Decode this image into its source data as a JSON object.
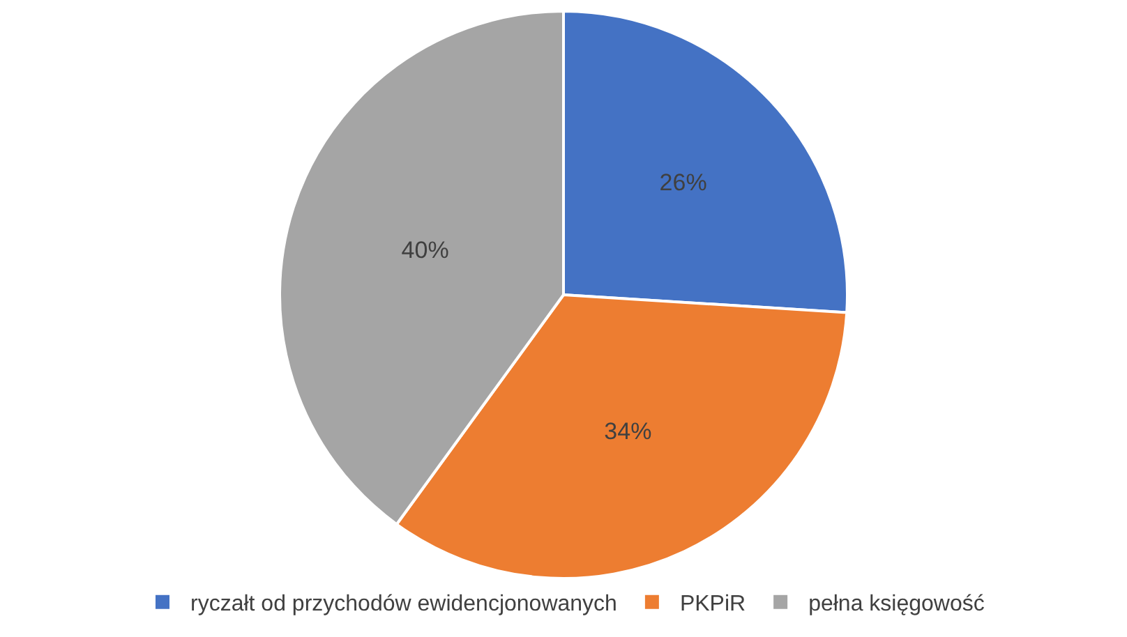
{
  "chart_data": {
    "type": "pie",
    "categories": [
      "ryczałt od przychodów ewidencjonowanych",
      "PKPiR",
      "pełna księgowość"
    ],
    "values": [
      26,
      34,
      40
    ],
    "value_labels": [
      "26%",
      "34%",
      "40%"
    ],
    "colors": [
      "#4472c4",
      "#ed7d31",
      "#a5a5a5"
    ],
    "legend": "bottom"
  }
}
